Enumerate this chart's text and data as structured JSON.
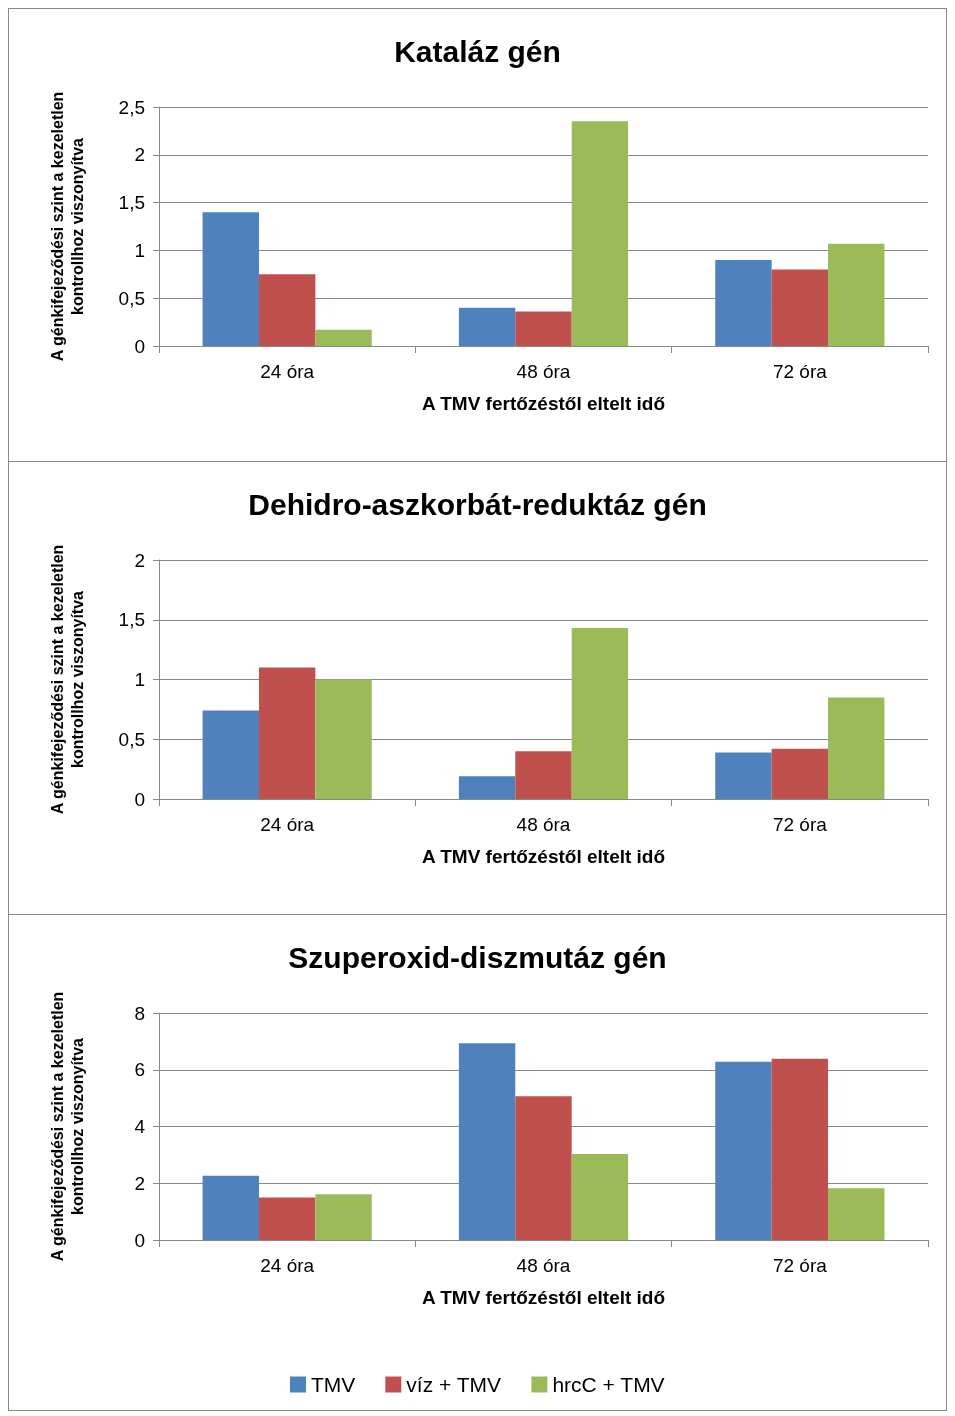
{
  "chart_data": [
    {
      "type": "bar",
      "title": "Kataláz gén",
      "xlabel": "A TMV fertőzéstől eltelt idő",
      "ylabel": "A génkifejeződési szint a kezeletlen\nkontrollhoz viszonyítva",
      "categories": [
        "24 óra",
        "48 óra",
        "72 óra"
      ],
      "series": [
        {
          "color": "#4f81bd",
          "values": [
            1.4,
            0.4,
            0.9
          ]
        },
        {
          "color": "#c0504d",
          "values": [
            0.75,
            0.36,
            0.8
          ]
        },
        {
          "color": "#9bbb59",
          "values": [
            0.17,
            2.35,
            1.07
          ]
        }
      ],
      "ylim": [
        0,
        2.5
      ],
      "yticks": [
        0,
        {
          "value": 0.5,
          "label": "0,5"
        },
        1,
        {
          "value": 1.5,
          "label": "1,5"
        },
        2,
        {
          "value": 2.5,
          "label": "2,5"
        }
      ],
      "grid": "y",
      "legend": false
    },
    {
      "type": "bar",
      "title": "Dehidro-aszkorbát-reduktáz gén",
      "xlabel": "A TMV fertőzéstől eltelt idő",
      "ylabel": "A génkifejeződési szint a kezeletlen\nkontrollhoz viszonyítva",
      "categories": [
        "24 óra",
        "48 óra",
        "72 óra"
      ],
      "series": [
        {
          "color": "#4f81bd",
          "values": [
            0.74,
            0.19,
            0.39
          ]
        },
        {
          "color": "#c0504d",
          "values": [
            1.1,
            0.4,
            0.42
          ]
        },
        {
          "color": "#9bbb59",
          "values": [
            1.0,
            1.43,
            0.85
          ]
        }
      ],
      "ylim": [
        0,
        2
      ],
      "yticks": [
        0,
        {
          "value": 0.5,
          "label": "0,5"
        },
        1,
        {
          "value": 1.5,
          "label": "1,5"
        },
        2
      ],
      "grid": "y",
      "legend": false
    },
    {
      "type": "bar",
      "title": "Szuperoxid-diszmutáz gén",
      "xlabel": "A TMV fertőzéstől eltelt idő",
      "ylabel": "A génkifejeződési szint a kezeletlen\nkontrollhoz viszonyítva",
      "categories": [
        "24 óra",
        "48 óra",
        "72 óra"
      ],
      "series": [
        {
          "name": "TMV",
          "color": "#4f81bd",
          "values": [
            2.26,
            6.93,
            6.28
          ]
        },
        {
          "name": "víz + TMV",
          "color": "#c0504d",
          "values": [
            1.5,
            5.07,
            6.39
          ]
        },
        {
          "name": "hrcC + TMV",
          "color": "#9bbb59",
          "values": [
            1.61,
            3.03,
            1.82
          ]
        }
      ],
      "ylim": [
        0,
        8
      ],
      "yticks": [
        0,
        2,
        4,
        6,
        8
      ],
      "grid": "y",
      "legend": "bottom"
    }
  ]
}
